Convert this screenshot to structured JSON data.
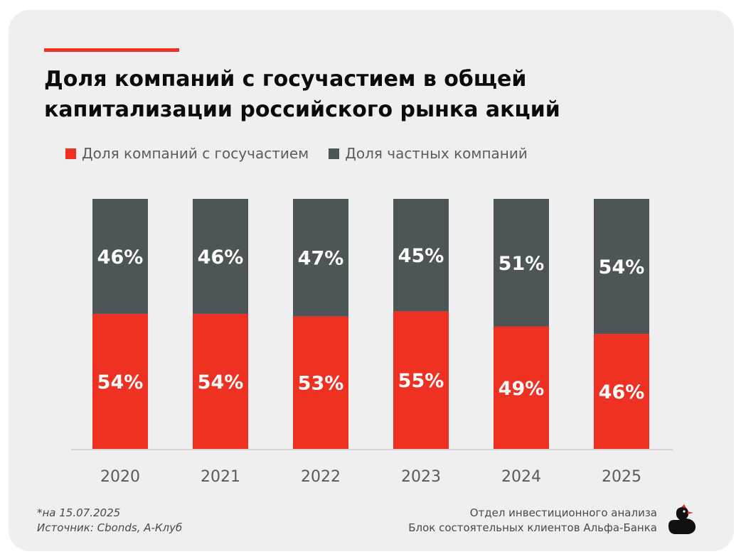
{
  "header": {
    "title_line1": "Доля компаний с госучастием в общей",
    "title_line2": "капитализации российского рынка акций"
  },
  "colors": {
    "state": "#ef3124",
    "private": "#4e5556",
    "accent": "#ef3124"
  },
  "chart_data": {
    "type": "bar",
    "stacked": true,
    "categories": [
      "2020",
      "2021",
      "2022",
      "2023",
      "2024",
      "2025"
    ],
    "series": [
      {
        "name": "Доля компаний с госучастием",
        "values": [
          54,
          54,
          53,
          55,
          49,
          46
        ],
        "labels": [
          "54%",
          "54%",
          "53%",
          "55%",
          "49%",
          "46%"
        ]
      },
      {
        "name": "Доля частных компаний",
        "values": [
          46,
          46,
          47,
          45,
          51,
          54
        ],
        "labels": [
          "46%",
          "46%",
          "47%",
          "45%",
          "51%",
          "54%"
        ]
      }
    ],
    "ylim": [
      0,
      100
    ],
    "legend_position": "top-left",
    "grid": false
  },
  "footer": {
    "footnote_line1": "*на 15.07.2025",
    "footnote_line2": "Источник: Cbonds, А-Клуб",
    "credit_line1": "Отдел инвестиционного анализа",
    "credit_line2": "Блок состоятельных клиентов Альфа-Банка",
    "logo_icon": "duck-icon"
  }
}
